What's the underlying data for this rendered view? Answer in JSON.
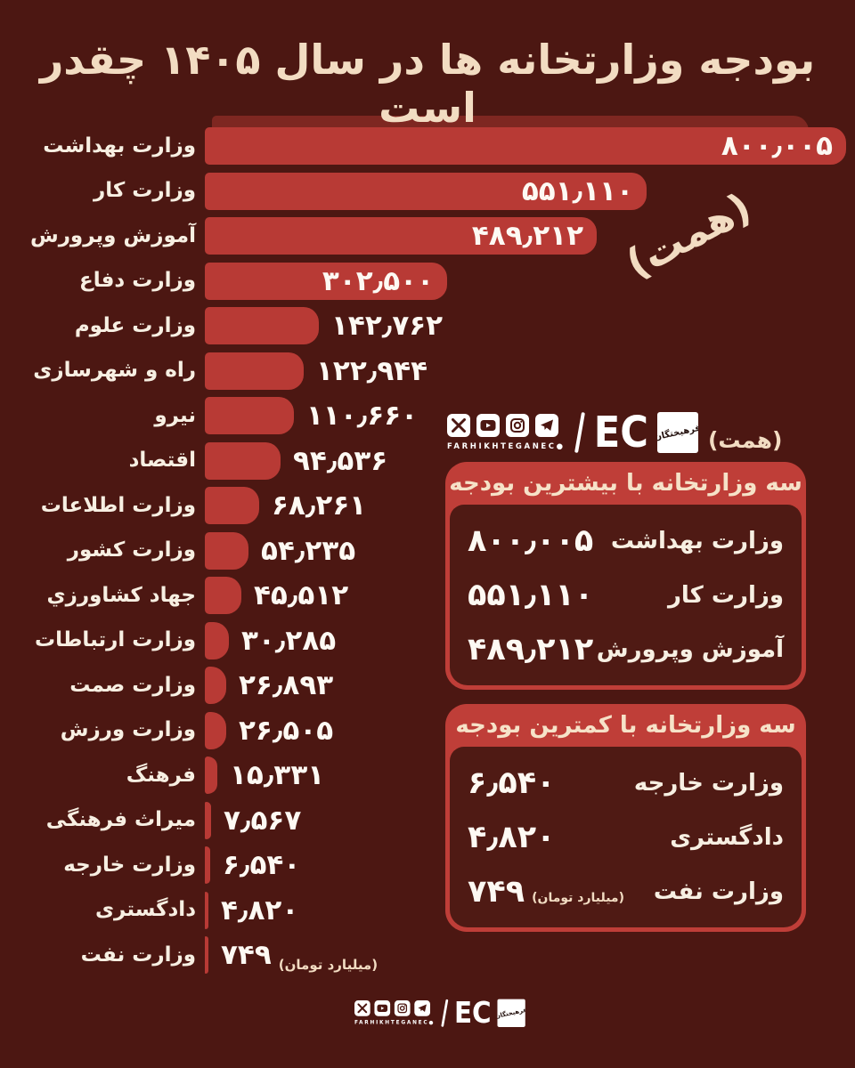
{
  "colors": {
    "background": "#4c1712",
    "bar_red": "#b83a35",
    "bar_shadow_red": "#7e2721",
    "box_border_red": "#bf3e38",
    "box_interior": "#4f1a14",
    "title_cream": "#f2dcc2",
    "label_cream": "#f7efe2",
    "value_white": "#fdf9f3"
  },
  "title": "بودجه وزارتخانه ها در سال ۱۴۰۵ چقدر است",
  "unit_note_rotated": "(همت)",
  "unit_note_small": "(همت)",
  "chart_data": {
    "type": "bar",
    "orientation": "horizontal",
    "unit_label": "همت",
    "x_max": 800005,
    "rows": [
      {
        "label": "وزارت بهداشت",
        "value": 800005,
        "display": "۸۰۰٫۰۰۵",
        "inside": true
      },
      {
        "label": "وزارت کار",
        "value": 551110,
        "display": "۵۵۱٫۱۱۰",
        "inside": true
      },
      {
        "label": "آموزش وپرورش",
        "value": 489212,
        "display": "۴۸۹٫۲۱۲",
        "inside": true
      },
      {
        "label": "وزارت دفاع",
        "value": 302500,
        "display": "۳۰۲٫۵۰۰",
        "inside": true
      },
      {
        "label": "وزارت علوم",
        "value": 142762,
        "display": "۱۴۲٫۷۶۲",
        "inside": false
      },
      {
        "label": "راه و شهرسازی",
        "value": 122944,
        "display": "۱۲۲٫۹۴۴",
        "inside": false
      },
      {
        "label": "نیرو",
        "value": 110660,
        "display": "۱۱۰٫۶۶۰",
        "inside": false
      },
      {
        "label": "اقتصاد",
        "value": 94536,
        "display": "۹۴٫۵۳۶",
        "inside": false
      },
      {
        "label": "وزارت اطلاعات",
        "value": 68261,
        "display": "۶۸٫۲۶۱",
        "inside": false
      },
      {
        "label": "وزارت کشور",
        "value": 54235,
        "display": "۵۴٫۲۳۵",
        "inside": false
      },
      {
        "label": "جهاد کشاورزي",
        "value": 45512,
        "display": "۴۵٫۵۱۲",
        "inside": false
      },
      {
        "label": "وزارت ارتباطات",
        "value": 30285,
        "display": "۳۰٫۲۸۵",
        "inside": false
      },
      {
        "label": "وزارت صمت",
        "value": 26893,
        "display": "۲۶٫۸۹۳",
        "inside": false
      },
      {
        "label": "وزارت ورزش",
        "value": 26505,
        "display": "۲۶٫۵۰۵",
        "inside": false
      },
      {
        "label": "فرهنگ",
        "value": 15331,
        "display": "۱۵٫۳۳۱",
        "inside": false
      },
      {
        "label": "میراث فرهنگی",
        "value": 7567,
        "display": "۷٫۵۶۷",
        "inside": false
      },
      {
        "label": "وزارت خارجه",
        "value": 6540,
        "display": "۶٫۵۴۰",
        "inside": false
      },
      {
        "label": "دادگستری",
        "value": 4820,
        "display": "۴٫۸۲۰",
        "inside": false
      },
      {
        "label": "وزارت نفت",
        "value": 749,
        "display": "۷۴۹",
        "inside": false,
        "note": "(میلیارد تومان)"
      }
    ]
  },
  "logo": {
    "brand": "FARHIKHTEGANEC",
    "brand_dot": "●",
    "ec_text": "EC",
    "ec_farsi": "فرهیختگان",
    "divider": "|",
    "icons": [
      "x-icon",
      "youtube-icon",
      "instagram-icon",
      "telegram-icon"
    ]
  },
  "boxes": [
    {
      "header": "سه وزارتخانه با بیشترین بودجه",
      "rows": [
        {
          "label": "وزارت بهداشت",
          "display": "۸۰۰٫۰۰۵"
        },
        {
          "label": "وزارت کار",
          "display": "۵۵۱٫۱۱۰"
        },
        {
          "label": "آموزش وپرورش",
          "display": "۴۸۹٫۲۱۲"
        }
      ]
    },
    {
      "header": "سه وزارتخانه با کمترین بودجه",
      "rows": [
        {
          "label": "وزارت خارجه",
          "display": "۶٫۵۴۰"
        },
        {
          "label": "دادگستری",
          "display": "۴٫۸۲۰"
        },
        {
          "label": "وزارت نفت",
          "display": "۷۴۹",
          "note": "(میلیارد تومان)"
        }
      ]
    }
  ]
}
